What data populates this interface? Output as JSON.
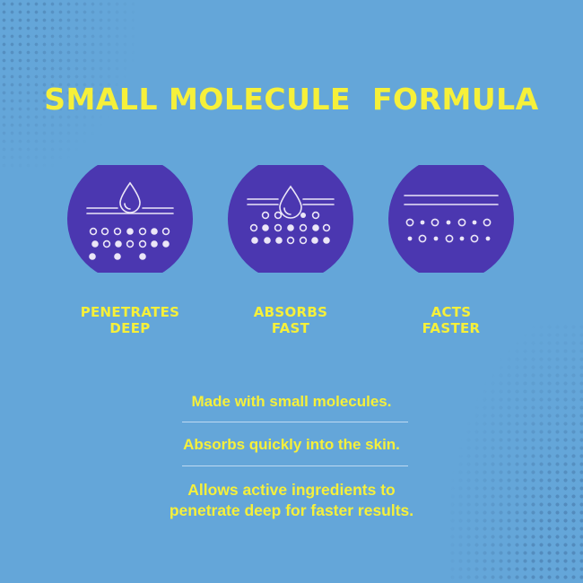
{
  "title": "SMALL MOLECULE  FORMULA",
  "features": [
    {
      "label": "PENETRATES\nDEEP",
      "icon": "droplet-penetrating-skin-icon"
    },
    {
      "label": "ABSORBS\nFAST",
      "icon": "droplet-absorbing-molecules-icon"
    },
    {
      "label": "ACTS\nFASTER",
      "icon": "skin-layer-molecules-icon"
    }
  ],
  "descriptions": [
    "Made with small molecules.",
    "Absorbs quickly into the skin.",
    "Allows active ingredients to\npenetrate deep for faster results."
  ],
  "colors": {
    "background": "#64a6d9",
    "accent_yellow": "#f6f03a",
    "circle_purple": "#4b37b0",
    "icon_line": "#ebe6f7"
  }
}
